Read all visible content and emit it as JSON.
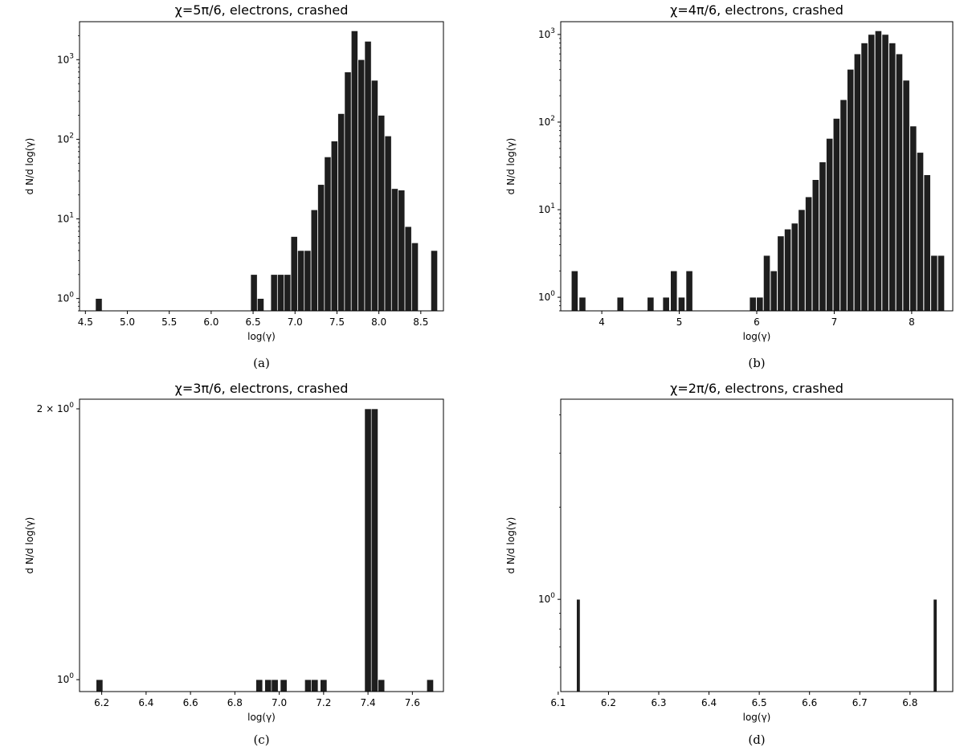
{
  "chart_data": [
    {
      "panel": "(a)",
      "type": "bar",
      "title": "χ=5π/6, electrons, crashed",
      "xlabel": "log(γ)",
      "ylabel": "d N/d log(γ)",
      "yscale": "log",
      "xlim": [
        4.43,
        8.77
      ],
      "ylim": [
        0.7,
        3000
      ],
      "xticks": [
        4.5,
        5.0,
        5.5,
        6.0,
        6.5,
        7.0,
        7.5,
        8.0,
        8.5
      ],
      "xtick_labels": [
        "4.5",
        "5.0",
        "5.5",
        "6.0",
        "6.5",
        "7.0",
        "7.5",
        "8.0",
        "8.5"
      ],
      "yticks": [
        1,
        10,
        100,
        1000
      ],
      "ytick_labels": [
        "10^0",
        "10^1",
        "10^2",
        "10^3"
      ],
      "bar_width": 0.078,
      "x": [
        4.66,
        6.51,
        6.59,
        6.75,
        6.83,
        6.91,
        6.99,
        7.07,
        7.15,
        7.23,
        7.31,
        7.39,
        7.47,
        7.55,
        7.63,
        7.71,
        7.79,
        7.87,
        7.95,
        8.03,
        8.11,
        8.19,
        8.27,
        8.35,
        8.43,
        8.66
      ],
      "values": [
        1,
        2,
        1,
        2,
        2,
        2,
        6,
        4,
        4,
        13,
        27,
        60,
        95,
        210,
        700,
        2300,
        1000,
        1700,
        550,
        200,
        110,
        24,
        23,
        8,
        5,
        4
      ]
    },
    {
      "panel": "(b)",
      "type": "bar",
      "title": "χ=4π/6, electrons, crashed",
      "xlabel": "log(γ)",
      "ylabel": "d N/d log(γ)",
      "yscale": "log",
      "xlim": [
        3.47,
        8.53
      ],
      "ylim": [
        0.7,
        1400
      ],
      "xticks": [
        4,
        5,
        6,
        7,
        8
      ],
      "xtick_labels": [
        "4",
        "5",
        "6",
        "7",
        "8"
      ],
      "yticks": [
        1,
        10,
        100,
        1000
      ],
      "ytick_labels": [
        "10^0",
        "10^1",
        "10^2",
        "10^3"
      ],
      "bar_width": 0.085,
      "x": [
        3.65,
        3.75,
        4.24,
        4.63,
        4.83,
        4.93,
        5.03,
        5.13,
        5.95,
        6.04,
        6.13,
        6.22,
        6.31,
        6.4,
        6.49,
        6.58,
        6.67,
        6.76,
        6.85,
        6.94,
        7.03,
        7.12,
        7.21,
        7.3,
        7.39,
        7.48,
        7.57,
        7.66,
        7.75,
        7.84,
        7.93,
        8.02,
        8.11,
        8.2,
        8.29,
        8.38
      ],
      "values": [
        2,
        1,
        1,
        1,
        1,
        2,
        1,
        2,
        1,
        1,
        3,
        2,
        5,
        6,
        7,
        10,
        14,
        22,
        35,
        65,
        110,
        180,
        400,
        600,
        800,
        1000,
        1100,
        1000,
        800,
        600,
        300,
        90,
        45,
        25,
        3,
        3
      ]
    },
    {
      "panel": "(c)",
      "type": "bar",
      "title": "χ=3π/6, electrons, crashed",
      "xlabel": "log(γ)",
      "ylabel": "d N/d log(γ)",
      "yscale": "log",
      "xlim": [
        6.1,
        7.74
      ],
      "ylim": [
        0.97,
        2.05
      ],
      "xticks": [
        6.2,
        6.4,
        6.6,
        6.8,
        7.0,
        7.2,
        7.4,
        7.6
      ],
      "xtick_labels": [
        "6.2",
        "6.4",
        "6.6",
        "6.8",
        "7.0",
        "7.2",
        "7.4",
        "7.6"
      ],
      "yticks": [
        1,
        2
      ],
      "ytick_labels": [
        "10^0",
        "2 × 10^0"
      ],
      "bar_width": 0.03,
      "x": [
        6.19,
        6.91,
        6.95,
        6.98,
        7.02,
        7.13,
        7.16,
        7.2,
        7.4,
        7.43,
        7.46,
        7.68
      ],
      "values": [
        1,
        1,
        1,
        1,
        1,
        1,
        1,
        1,
        2,
        2,
        1,
        1
      ]
    },
    {
      "panel": "(d)",
      "type": "bar",
      "title": "χ=2π/6, electrons, crashed",
      "xlabel": "log(γ)",
      "ylabel": "d N/d log(γ)",
      "yscale": "log",
      "xlim": [
        6.105,
        6.885
      ],
      "ylim": [
        0.5,
        4.5
      ],
      "xticks": [
        6.1,
        6.2,
        6.3,
        6.4,
        6.5,
        6.6,
        6.7,
        6.8
      ],
      "xtick_labels": [
        "6.1",
        "6.2",
        "6.3",
        "6.4",
        "6.5",
        "6.6",
        "6.7",
        "6.8"
      ],
      "yticks": [
        1
      ],
      "ytick_labels": [
        "10^0"
      ],
      "bar_width": 0.007,
      "x": [
        6.14,
        6.85
      ],
      "values": [
        1,
        1
      ]
    }
  ]
}
